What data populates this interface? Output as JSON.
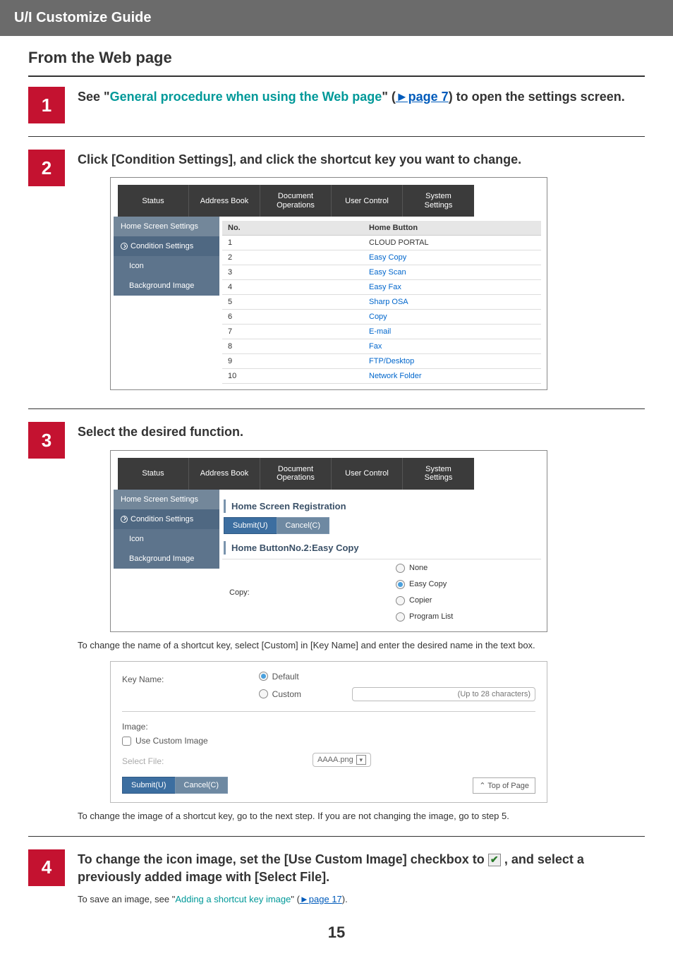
{
  "header": {
    "title": "U/I Customize Guide"
  },
  "section_heading": "From the Web page",
  "steps": {
    "s1": {
      "num": "1",
      "title_prefix": "See \"",
      "title_link": "General procedure when using the Web page",
      "title_mid": "\" (",
      "title_pagelink": "►page 7",
      "title_suffix": ") to open the settings screen."
    },
    "s2": {
      "num": "2",
      "title": "Click [Condition Settings], and click the shortcut key you want to change.",
      "tabs": [
        "Status",
        "Address Book",
        "Document\nOperations",
        "User Control",
        "System\nSettings"
      ],
      "sidebar": {
        "heading": "Home Screen Settings",
        "active": "Condition Settings",
        "sub1": "Icon",
        "sub2": "Background Image"
      },
      "table": {
        "head_no": "No.",
        "head_btn": "Home Button",
        "rows": [
          {
            "no": "1",
            "label": "CLOUD PORTAL",
            "link": false
          },
          {
            "no": "2",
            "label": "Easy Copy",
            "link": true
          },
          {
            "no": "3",
            "label": "Easy Scan",
            "link": true
          },
          {
            "no": "4",
            "label": "Easy Fax",
            "link": true
          },
          {
            "no": "5",
            "label": "Sharp OSA",
            "link": true
          },
          {
            "no": "6",
            "label": "Copy",
            "link": true
          },
          {
            "no": "7",
            "label": "E-mail",
            "link": true
          },
          {
            "no": "8",
            "label": "Fax",
            "link": true
          },
          {
            "no": "9",
            "label": "FTP/Desktop",
            "link": true
          },
          {
            "no": "10",
            "label": "Network Folder",
            "link": true
          }
        ]
      }
    },
    "s3": {
      "num": "3",
      "title": "Select the desired function.",
      "section_label_1": "Home Screen Registration",
      "btn_submit": "Submit(U)",
      "btn_cancel": "Cancel(C)",
      "section_label_2": "Home ButtonNo.2:Easy Copy",
      "copy_label": "Copy:",
      "options": [
        "None",
        "Easy Copy",
        "Copier",
        "Program List"
      ],
      "selected_index": 1,
      "note": "To change the name of a shortcut key, select [Custom] in [Key Name] and enter the desired name in the text box.",
      "form": {
        "key_name_label": "Key Name:",
        "opt_default": "Default",
        "opt_custom": "Custom",
        "custom_placeholder": "(Up to 28 characters)",
        "image_label": "Image:",
        "use_custom_image": "Use Custom Image",
        "select_file_label": "Select File:",
        "select_file_value": "AAAA.png",
        "top_of_page": "⌃ Top of Page"
      },
      "note2": "To change the image of a shortcut key, go to the next step. If you are not changing the image, go to step 5."
    },
    "s4": {
      "num": "4",
      "title_a": "To change the icon image, set the [Use Custom Image] checkbox to ",
      "title_b": " , and select a previously added image with [Select File].",
      "note_prefix": "To save an image, see \"",
      "note_link": "Adding a shortcut key image",
      "note_mid": "\" (",
      "note_pagelink": "►page 17",
      "note_suffix": ")."
    }
  },
  "page_number": "15"
}
